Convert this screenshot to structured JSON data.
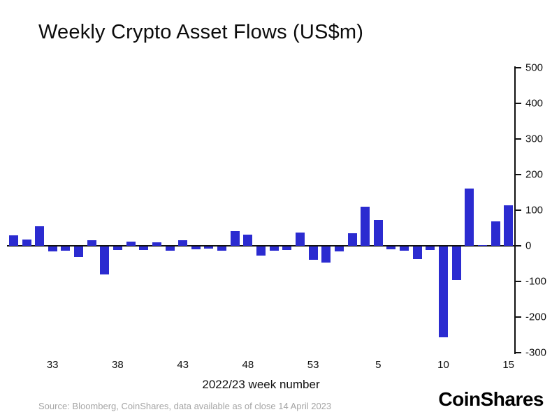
{
  "header": {
    "title": "Weekly Crypto Asset Flows (US$m)"
  },
  "footer": {
    "source": "Source: Bloomberg, CoinShares, data available as of close 14 April 2023",
    "brand": "CoinShares"
  },
  "colors": {
    "bar": "#2b2bd0",
    "axis": "#111111",
    "source_text": "#a5a5a5"
  },
  "chart_data": {
    "type": "bar",
    "title": "Weekly Crypto Asset Flows (US$m)",
    "xlabel": "2022/23 week number",
    "ylabel": "",
    "ylim": [
      -300,
      500
    ],
    "yticks": [
      500,
      400,
      300,
      200,
      100,
      0,
      -100,
      -200,
      -300
    ],
    "grid": false,
    "legend": "none",
    "y_axis_side": "right",
    "categories": [
      "30",
      "31",
      "32",
      "33",
      "34",
      "35",
      "36",
      "37",
      "38",
      "39",
      "40",
      "41",
      "42",
      "43",
      "44",
      "45",
      "46",
      "47",
      "48",
      "49",
      "50",
      "51",
      "52",
      "53",
      "1",
      "2",
      "3",
      "4",
      "5",
      "6",
      "7",
      "8",
      "9",
      "10",
      "11",
      "12",
      "13",
      "14",
      "15"
    ],
    "values": [
      30,
      18,
      55,
      -15,
      -12,
      -30,
      15,
      -78,
      -10,
      12,
      -10,
      10,
      -12,
      15,
      -8,
      -6,
      -12,
      42,
      32,
      -25,
      -12,
      -10,
      38,
      -38,
      -45,
      -15,
      35,
      110,
      72,
      -8,
      -12,
      -35,
      -10,
      -255,
      -95,
      160,
      2,
      68,
      114
    ],
    "xtick_indices": [
      3,
      8,
      13,
      18,
      23,
      28,
      33,
      38
    ],
    "xtick_labels": [
      "33",
      "38",
      "43",
      "48",
      "53",
      "5",
      "10",
      "15"
    ]
  }
}
